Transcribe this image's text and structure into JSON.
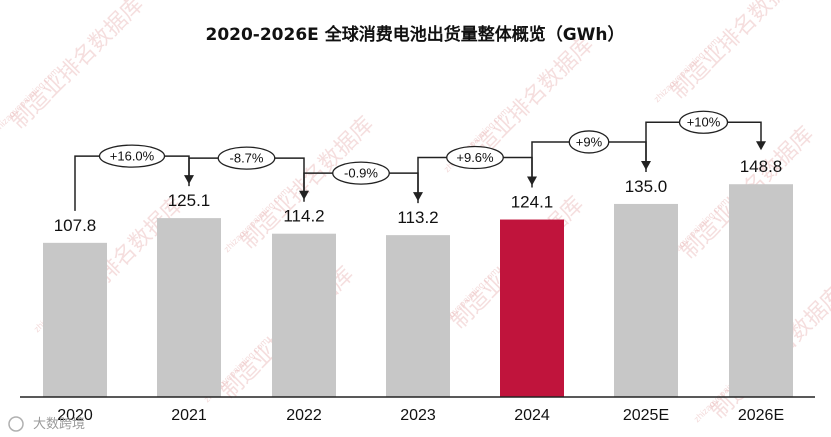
{
  "chart_data": {
    "type": "bar",
    "title": "2020-2026E 全球消费电池出货量整体概览（GWh）",
    "categories": [
      "2020",
      "2021",
      "2022",
      "2023",
      "2024",
      "2025E",
      "2026E"
    ],
    "values": [
      107.8,
      125.1,
      114.2,
      113.2,
      124.1,
      135.0,
      148.8
    ],
    "value_labels": [
      "107.8",
      "125.1",
      "114.2",
      "113.2",
      "124.1",
      "135.0",
      "148.8"
    ],
    "changes": [
      "+16.0%",
      "-8.7%",
      "-0.9%",
      "+9.6%",
      "+9%",
      "+10%"
    ],
    "highlight_index": 4,
    "colors": {
      "bar": "#c7c7c7",
      "highlight": "#c0143c",
      "baseline": "#222222"
    },
    "grid": false
  },
  "watermark": {
    "text": "制造业排名数据库",
    "url": "zhizaoyepaiming.com",
    "source": "大数跨境"
  }
}
